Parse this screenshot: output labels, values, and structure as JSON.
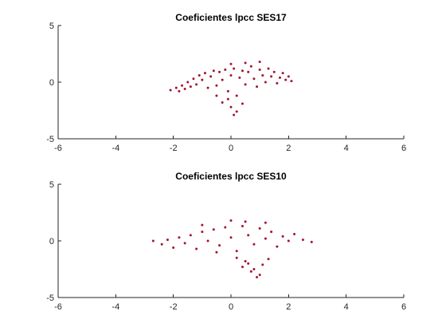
{
  "chart_data": [
    {
      "type": "scatter",
      "title": "Coeficientes lpcc SES17",
      "xlabel": "",
      "ylabel": "",
      "xlim": [
        -6,
        6
      ],
      "ylim": [
        -5,
        5
      ],
      "xticks": [
        "-6",
        "-4",
        "-2",
        "0",
        "2",
        "4",
        "6"
      ],
      "yticks": [
        "-5",
        "0",
        "5"
      ],
      "grid": false,
      "marker_color": "#A2142F",
      "marker_size": 1.5,
      "series": [
        {
          "points": [
            [
              -2.1,
              -0.7
            ],
            [
              -1.9,
              -0.5
            ],
            [
              -1.8,
              -0.8
            ],
            [
              -1.7,
              -0.3
            ],
            [
              -1.6,
              -0.6
            ],
            [
              -1.5,
              0.0
            ],
            [
              -1.4,
              -0.4
            ],
            [
              -1.3,
              0.3
            ],
            [
              -1.2,
              -0.2
            ],
            [
              -1.1,
              0.6
            ],
            [
              -1.0,
              0.2
            ],
            [
              -0.9,
              0.8
            ],
            [
              -0.8,
              -0.5
            ],
            [
              -0.7,
              0.5
            ],
            [
              -0.6,
              1.0
            ],
            [
              -0.5,
              -0.3
            ],
            [
              -0.4,
              0.9
            ],
            [
              -0.3,
              0.2
            ],
            [
              -0.2,
              1.1
            ],
            [
              -0.1,
              -0.8
            ],
            [
              0.0,
              0.6
            ],
            [
              0.1,
              1.2
            ],
            [
              0.2,
              -1.2
            ],
            [
              0.3,
              0.4
            ],
            [
              0.4,
              1.0
            ],
            [
              0.5,
              -0.2
            ],
            [
              0.6,
              0.9
            ],
            [
              0.7,
              1.4
            ],
            [
              0.8,
              0.3
            ],
            [
              0.9,
              -0.4
            ],
            [
              1.0,
              1.1
            ],
            [
              1.1,
              0.6
            ],
            [
              1.2,
              0.0
            ],
            [
              1.3,
              1.2
            ],
            [
              1.4,
              0.5
            ],
            [
              1.5,
              0.9
            ],
            [
              1.6,
              -0.1
            ],
            [
              1.7,
              0.4
            ],
            [
              1.8,
              0.8
            ],
            [
              1.9,
              0.2
            ],
            [
              2.0,
              0.5
            ],
            [
              2.1,
              0.1
            ],
            [
              -0.3,
              -1.8
            ],
            [
              0.0,
              -2.2
            ],
            [
              0.2,
              -2.6
            ],
            [
              -0.1,
              -1.5
            ],
            [
              0.1,
              -2.9
            ],
            [
              -0.5,
              -1.2
            ],
            [
              0.4,
              -1.9
            ],
            [
              0.0,
              1.6
            ],
            [
              0.5,
              1.7
            ],
            [
              1.0,
              1.8
            ]
          ]
        }
      ]
    },
    {
      "type": "scatter",
      "title": "Coeficientes lpcc SES10",
      "xlabel": "",
      "ylabel": "",
      "xlim": [
        -6,
        6
      ],
      "ylim": [
        -5,
        5
      ],
      "xticks": [
        "-6",
        "-4",
        "-2",
        "0",
        "2",
        "4",
        "6"
      ],
      "yticks": [
        "-5",
        "0",
        "5"
      ],
      "grid": false,
      "marker_color": "#A2142F",
      "marker_size": 1.5,
      "series": [
        {
          "points": [
            [
              -2.7,
              0.0
            ],
            [
              -2.4,
              -0.3
            ],
            [
              -2.2,
              0.1
            ],
            [
              -2.0,
              -0.6
            ],
            [
              -1.8,
              0.3
            ],
            [
              -1.6,
              -0.2
            ],
            [
              -1.4,
              0.5
            ],
            [
              -1.2,
              -0.7
            ],
            [
              -1.0,
              0.8
            ],
            [
              -0.8,
              0.0
            ],
            [
              -0.6,
              1.0
            ],
            [
              -0.4,
              -0.4
            ],
            [
              -0.2,
              1.2
            ],
            [
              0.0,
              0.3
            ],
            [
              0.2,
              -0.9
            ],
            [
              0.4,
              1.3
            ],
            [
              0.6,
              0.5
            ],
            [
              0.8,
              -0.3
            ],
            [
              1.0,
              1.1
            ],
            [
              1.2,
              0.2
            ],
            [
              1.4,
              0.8
            ],
            [
              1.6,
              -0.5
            ],
            [
              1.8,
              0.4
            ],
            [
              2.0,
              0.0
            ],
            [
              2.2,
              0.6
            ],
            [
              2.5,
              0.1
            ],
            [
              2.8,
              -0.1
            ],
            [
              0.4,
              -2.3
            ],
            [
              0.7,
              -2.7
            ],
            [
              0.9,
              -3.2
            ],
            [
              1.1,
              -2.1
            ],
            [
              0.5,
              -1.8
            ],
            [
              0.8,
              -2.5
            ],
            [
              1.3,
              -1.6
            ],
            [
              0.2,
              -1.5
            ],
            [
              -0.5,
              -1.0
            ],
            [
              1.0,
              -3.0
            ],
            [
              0.6,
              -2.0
            ],
            [
              0.0,
              1.8
            ],
            [
              0.5,
              1.7
            ],
            [
              -1.0,
              1.4
            ],
            [
              1.2,
              1.6
            ]
          ]
        }
      ]
    }
  ]
}
